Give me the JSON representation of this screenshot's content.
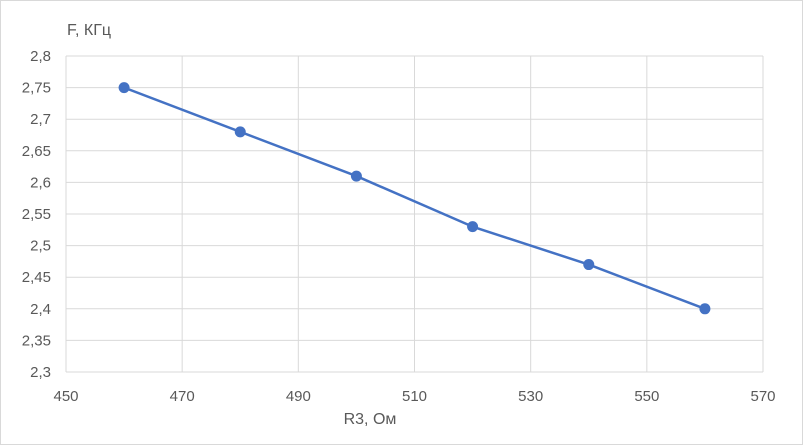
{
  "chart_data": {
    "type": "scatter",
    "title": "",
    "xlabel": "R3, Ом",
    "ylabel": "F, КГц",
    "xlim": [
      450,
      570
    ],
    "ylim": [
      2.3,
      2.8
    ],
    "xticks": [
      450,
      470,
      490,
      510,
      530,
      550,
      570
    ],
    "yticks": [
      2.3,
      2.35,
      2.4,
      2.45,
      2.5,
      2.55,
      2.6,
      2.65,
      2.7,
      2.75,
      2.8
    ],
    "xtick_labels": [
      "450",
      "470",
      "490",
      "510",
      "530",
      "550",
      "570"
    ],
    "ytick_labels": [
      "2,3",
      "2,35",
      "2,4",
      "2,45",
      "2,5",
      "2,55",
      "2,6",
      "2,65",
      "2,7",
      "2,75",
      "2,8"
    ],
    "grid": "vertical and horizontal",
    "legend": "none",
    "series": [
      {
        "x": [
          460,
          480,
          500,
          520,
          540,
          560
        ],
        "y": [
          2.75,
          2.68,
          2.61,
          2.53,
          2.47,
          2.4
        ],
        "color": "#4472c4",
        "line": true,
        "markers": true
      }
    ]
  }
}
